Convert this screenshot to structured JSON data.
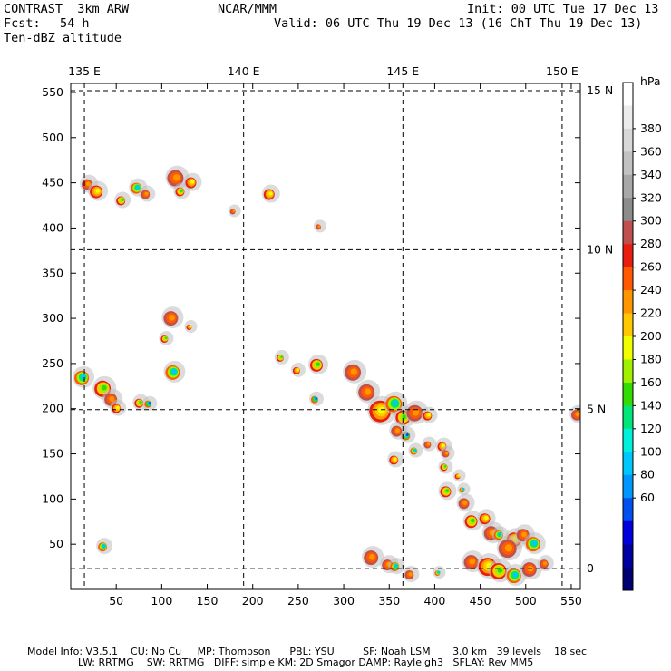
{
  "header": {
    "model": "CONTRAST  3km ARW",
    "fcst_label": "Fcst:",
    "fcst_value": "54 h",
    "field": "Ten-dBZ altitude",
    "center": "NCAR/MMM",
    "init": "Init: 00 UTC Tue 17 Dec 13",
    "valid": "Valid: 06 UTC Thu 19 Dec 13 (16 ChT Thu 19 Dec 13)"
  },
  "colorbar": {
    "unit": "hPa",
    "labels": [
      "380",
      "360",
      "340",
      "320",
      "300",
      "280",
      "260",
      "240",
      "220",
      "200",
      "180",
      "160",
      "140",
      "120",
      "100",
      "80",
      "60"
    ],
    "colors": [
      "#ffffff",
      "#ececec",
      "#d8d8d8",
      "#c2c2c2",
      "#a8a8a8",
      "#8c8c8c",
      "#c0504d",
      "#e81e0e",
      "#ff5a00",
      "#ff9600",
      "#ffc800",
      "#f0ff00",
      "#a0f000",
      "#32dc00",
      "#00e678",
      "#00f0dc",
      "#00c8ff",
      "#0096ff",
      "#0050f0",
      "#0000dc",
      "#0000a0",
      "#000070"
    ]
  },
  "chart_data": {
    "type": "map",
    "title": "Ten-dBZ altitude",
    "x_axis": {
      "range": [
        0,
        560
      ],
      "ticks": [
        50,
        100,
        150,
        200,
        250,
        300,
        350,
        400,
        450,
        500,
        550
      ]
    },
    "y_axis": {
      "range": [
        0,
        560
      ],
      "ticks": [
        50,
        100,
        150,
        200,
        250,
        300,
        350,
        400,
        450,
        500,
        550
      ]
    },
    "longitudes": [
      {
        "label": "135 E",
        "x": 15
      },
      {
        "label": "140 E",
        "x": 190
      },
      {
        "label": "145 E",
        "x": 365
      },
      {
        "label": "150 E",
        "x": 540
      }
    ],
    "latitudes": [
      {
        "label": "15 N",
        "y": 552
      },
      {
        "label": "10 N",
        "y": 376
      },
      {
        "label": "5 N",
        "y": 199
      },
      {
        "label": "0",
        "y": 23
      }
    ],
    "storms": [
      {
        "x": 18,
        "y": 448,
        "r": 6,
        "level": "red"
      },
      {
        "x": 28,
        "y": 440,
        "r": 7,
        "level": "yellow"
      },
      {
        "x": 55,
        "y": 430,
        "r": 5,
        "level": "green"
      },
      {
        "x": 72,
        "y": 444,
        "r": 6,
        "level": "cyan"
      },
      {
        "x": 82,
        "y": 437,
        "r": 5,
        "level": "red"
      },
      {
        "x": 115,
        "y": 455,
        "r": 9,
        "level": "red"
      },
      {
        "x": 120,
        "y": 440,
        "r": 5,
        "level": "green"
      },
      {
        "x": 132,
        "y": 450,
        "r": 6,
        "level": "yellow"
      },
      {
        "x": 178,
        "y": 418,
        "r": 3,
        "level": "red"
      },
      {
        "x": 218,
        "y": 437,
        "r": 6,
        "level": "yellow"
      },
      {
        "x": 272,
        "y": 401,
        "r": 3,
        "level": "red"
      },
      {
        "x": 110,
        "y": 300,
        "r": 8,
        "level": "red"
      },
      {
        "x": 103,
        "y": 277,
        "r": 4,
        "level": "green"
      },
      {
        "x": 130,
        "y": 290,
        "r": 3,
        "level": "yellow"
      },
      {
        "x": 12,
        "y": 234,
        "r": 8,
        "level": "cyan"
      },
      {
        "x": 35,
        "y": 222,
        "r": 9,
        "level": "green"
      },
      {
        "x": 44,
        "y": 210,
        "r": 7,
        "level": "red"
      },
      {
        "x": 50,
        "y": 200,
        "r": 5,
        "level": "yellow"
      },
      {
        "x": 75,
        "y": 206,
        "r": 5,
        "level": "green"
      },
      {
        "x": 85,
        "y": 205,
        "r": 4,
        "level": "blue"
      },
      {
        "x": 112,
        "y": 240,
        "r": 8,
        "level": "cyan"
      },
      {
        "x": 230,
        "y": 256,
        "r": 4,
        "level": "green"
      },
      {
        "x": 248,
        "y": 242,
        "r": 4,
        "level": "yellow"
      },
      {
        "x": 270,
        "y": 248,
        "r": 7,
        "level": "green"
      },
      {
        "x": 268,
        "y": 210,
        "r": 4,
        "level": "blue"
      },
      {
        "x": 310,
        "y": 240,
        "r": 9,
        "level": "red"
      },
      {
        "x": 325,
        "y": 218,
        "r": 9,
        "level": "red"
      },
      {
        "x": 340,
        "y": 197,
        "r": 12,
        "level": "yellow"
      },
      {
        "x": 355,
        "y": 205,
        "r": 9,
        "level": "cyan"
      },
      {
        "x": 365,
        "y": 190,
        "r": 8,
        "level": "green"
      },
      {
        "x": 378,
        "y": 195,
        "r": 9,
        "level": "red"
      },
      {
        "x": 368,
        "y": 170,
        "r": 5,
        "level": "blue"
      },
      {
        "x": 358,
        "y": 175,
        "r": 6,
        "level": "red"
      },
      {
        "x": 392,
        "y": 192,
        "r": 5,
        "level": "yellow"
      },
      {
        "x": 377,
        "y": 153,
        "r": 4,
        "level": "cyan"
      },
      {
        "x": 392,
        "y": 160,
        "r": 4,
        "level": "red"
      },
      {
        "x": 408,
        "y": 158,
        "r": 5,
        "level": "yellow"
      },
      {
        "x": 412,
        "y": 150,
        "r": 4,
        "level": "red"
      },
      {
        "x": 355,
        "y": 143,
        "r": 5,
        "level": "yellow"
      },
      {
        "x": 410,
        "y": 135,
        "r": 4,
        "level": "green"
      },
      {
        "x": 425,
        "y": 125,
        "r": 3,
        "level": "yellow"
      },
      {
        "x": 412,
        "y": 108,
        "r": 6,
        "level": "green"
      },
      {
        "x": 430,
        "y": 110,
        "r": 3,
        "level": "cyan"
      },
      {
        "x": 432,
        "y": 95,
        "r": 6,
        "level": "red"
      },
      {
        "x": 440,
        "y": 75,
        "r": 7,
        "level": "green"
      },
      {
        "x": 455,
        "y": 78,
        "r": 6,
        "level": "yellow"
      },
      {
        "x": 462,
        "y": 62,
        "r": 8,
        "level": "red"
      },
      {
        "x": 470,
        "y": 60,
        "r": 5,
        "level": "cyan"
      },
      {
        "x": 487,
        "y": 55,
        "r": 8,
        "level": "yellow"
      },
      {
        "x": 497,
        "y": 60,
        "r": 7,
        "level": "red"
      },
      {
        "x": 508,
        "y": 50,
        "r": 8,
        "level": "cyan"
      },
      {
        "x": 480,
        "y": 45,
        "r": 10,
        "level": "red"
      },
      {
        "x": 440,
        "y": 30,
        "r": 8,
        "level": "red"
      },
      {
        "x": 458,
        "y": 25,
        "r": 10,
        "level": "yellow"
      },
      {
        "x": 470,
        "y": 20,
        "r": 9,
        "level": "green"
      },
      {
        "x": 487,
        "y": 15,
        "r": 8,
        "level": "cyan"
      },
      {
        "x": 504,
        "y": 22,
        "r": 8,
        "level": "red"
      },
      {
        "x": 520,
        "y": 28,
        "r": 5,
        "level": "red"
      },
      {
        "x": 330,
        "y": 35,
        "r": 8,
        "level": "red"
      },
      {
        "x": 348,
        "y": 27,
        "r": 6,
        "level": "red"
      },
      {
        "x": 356,
        "y": 25,
        "r": 5,
        "level": "cyan"
      },
      {
        "x": 372,
        "y": 16,
        "r": 5,
        "level": "red"
      },
      {
        "x": 403,
        "y": 18,
        "r": 3,
        "level": "cyan"
      },
      {
        "x": 35,
        "y": 47,
        "r": 5,
        "level": "cyan"
      },
      {
        "x": 556,
        "y": 193,
        "r": 6,
        "level": "red"
      }
    ]
  },
  "footer": {
    "line1": "Model Info: V3.5.1    CU: No Cu     MP: Thompson      PBL: YSU         SF: Noah LSM       3.0 km   39 levels    18 sec",
    "line2": "                LW: RRTMG    SW: RRTMG   DIFF: simple KM: 2D Smagor DAMP: Rayleigh3   SFLAY: Rev MM5"
  }
}
